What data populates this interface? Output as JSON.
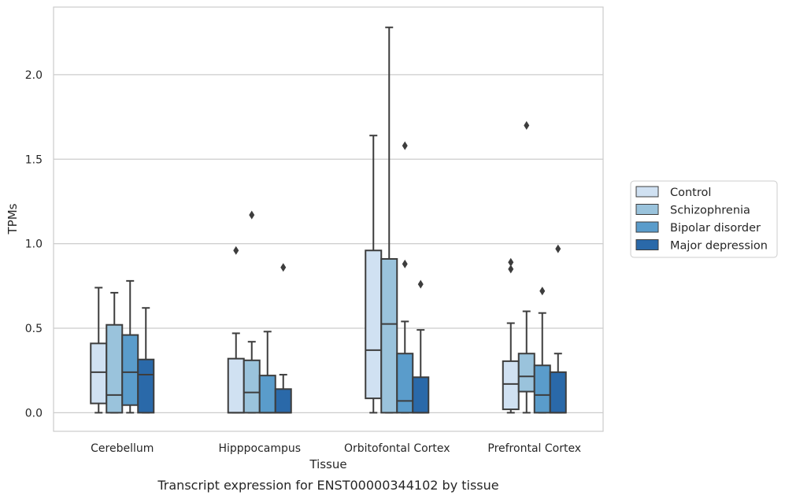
{
  "chart_data": {
    "type": "box",
    "xlabel": "Tissue",
    "ylabel": "TPMs",
    "caption": "Transcript expression for ENST00000344102 by tissue",
    "ylim": [
      -0.11,
      2.4
    ],
    "yticks": [
      0.0,
      0.5,
      1.0,
      1.5,
      2.0
    ],
    "ytick_labels": [
      "0.0",
      "0.5",
      "1.0",
      "1.5",
      "2.0"
    ],
    "grid": "horizontal",
    "legend_position": "right",
    "categories": [
      "Cerebellum",
      "Hipppocampus",
      "Orbitofontal Cortex",
      "Prefrontal Cortex"
    ],
    "series": [
      {
        "name": "Control",
        "color": "#d0e1f2",
        "boxes": [
          {
            "whislo": 0.0,
            "q1": 0.055,
            "med": 0.24,
            "q3": 0.41,
            "whishi": 0.74,
            "fliers": []
          },
          {
            "whislo": 0.0,
            "q1": 0.0,
            "med": 0.0,
            "q3": 0.32,
            "whishi": 0.47,
            "fliers": [
              0.96
            ]
          },
          {
            "whislo": 0.0,
            "q1": 0.085,
            "med": 0.37,
            "q3": 0.96,
            "whishi": 1.64,
            "fliers": []
          },
          {
            "whislo": 0.0,
            "q1": 0.02,
            "med": 0.17,
            "q3": 0.305,
            "whishi": 0.53,
            "fliers": [
              0.85,
              0.89
            ]
          }
        ]
      },
      {
        "name": "Schizophrenia",
        "color": "#9ac3dc",
        "boxes": [
          {
            "whislo": 0.0,
            "q1": 0.0,
            "med": 0.105,
            "q3": 0.52,
            "whishi": 0.71,
            "fliers": []
          },
          {
            "whislo": 0.0,
            "q1": 0.0,
            "med": 0.12,
            "q3": 0.31,
            "whishi": 0.42,
            "fliers": [
              1.17
            ]
          },
          {
            "whislo": 0.0,
            "q1": 0.0,
            "med": 0.525,
            "q3": 0.91,
            "whishi": 2.28,
            "fliers": []
          },
          {
            "whislo": 0.0,
            "q1": 0.125,
            "med": 0.215,
            "q3": 0.35,
            "whishi": 0.6,
            "fliers": [
              1.7
            ]
          }
        ]
      },
      {
        "name": "Bipolar disorder",
        "color": "#5a9ccb",
        "boxes": [
          {
            "whislo": 0.0,
            "q1": 0.045,
            "med": 0.24,
            "q3": 0.46,
            "whishi": 0.78,
            "fliers": []
          },
          {
            "whislo": 0.0,
            "q1": 0.0,
            "med": 0.0,
            "q3": 0.22,
            "whishi": 0.48,
            "fliers": []
          },
          {
            "whislo": 0.0,
            "q1": 0.0,
            "med": 0.07,
            "q3": 0.35,
            "whishi": 0.54,
            "fliers": [
              0.88,
              1.58
            ]
          },
          {
            "whislo": 0.0,
            "q1": 0.0,
            "med": 0.105,
            "q3": 0.28,
            "whishi": 0.59,
            "fliers": [
              0.72
            ]
          }
        ]
      },
      {
        "name": "Major depression",
        "color": "#2a69a9",
        "boxes": [
          {
            "whislo": 0.0,
            "q1": 0.0,
            "med": 0.225,
            "q3": 0.315,
            "whishi": 0.62,
            "fliers": []
          },
          {
            "whislo": 0.0,
            "q1": 0.0,
            "med": 0.0,
            "q3": 0.14,
            "whishi": 0.225,
            "fliers": [
              0.86
            ]
          },
          {
            "whislo": 0.0,
            "q1": 0.0,
            "med": 0.0,
            "q3": 0.21,
            "whishi": 0.49,
            "fliers": [
              0.76
            ]
          },
          {
            "whislo": 0.0,
            "q1": 0.0,
            "med": 0.0,
            "q3": 0.24,
            "whishi": 0.35,
            "fliers": [
              0.97
            ]
          }
        ]
      }
    ]
  }
}
